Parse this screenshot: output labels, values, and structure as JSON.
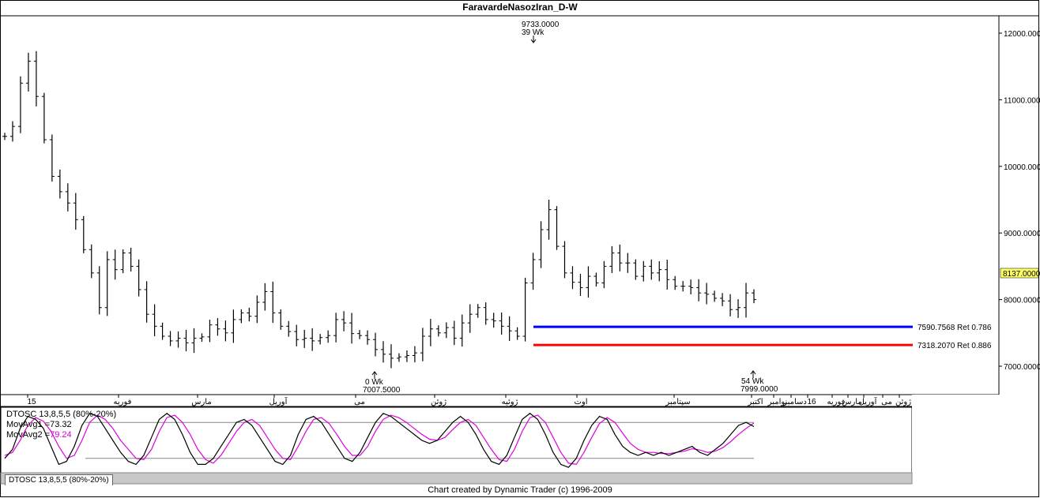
{
  "window": {
    "title": "FaravardeNasozIran_D-W",
    "footer": "Chart created by Dynamic Trader  (c) 1996-2009"
  },
  "oscillator": {
    "name": "DTOSC 13,8,5,5 (80%-20%)",
    "mov1_label": "MovAvg1 =",
    "mov1_value": "73.32",
    "mov2_label": "MovAvg2 =",
    "mov2_value": "79.24",
    "tab_label": "DTOSC 13,8,5,5 (80%-20%)",
    "colors": {
      "mov1": "#000000",
      "mov2": "#e000e0"
    }
  },
  "annotations": {
    "high": {
      "price": "9733.0000",
      "bars": "39 Wk"
    },
    "low": {
      "bars": "0 Wk",
      "price": "7007.5000"
    },
    "recent": {
      "bars": "54 Wk",
      "price": "7999.0000"
    },
    "current_price": "8137.0000",
    "ret1": {
      "price": "7590.7568",
      "ratio": "Ret 0.786",
      "color": "#0000ff"
    },
    "ret2": {
      "price": "7318.2070",
      "ratio": "Ret 0.886",
      "color": "#ff0000"
    }
  },
  "chart_data": {
    "type": "bar",
    "title": "FaravardeNasozIran_D-W",
    "y_axis": {
      "ticks": [
        "12000.0000",
        "11000.0000",
        "10000.0000",
        "9000.0000",
        "8000.0000",
        "7000.0000"
      ],
      "ylim": [
        6600,
        12200
      ],
      "position": "right"
    },
    "x_axis_labels": [
      "15",
      "فوریه",
      "مارس",
      "آوریل",
      "می",
      "ژوئن",
      "ژوئیه",
      "اوت",
      "سپتامبر",
      "اکتبر",
      "نوامبر",
      "دسامبر",
      "16",
      "فوریه",
      "مارس",
      "آوریل",
      "می",
      "ژوئن"
    ],
    "series": [],
    "close_values": [
      10450,
      10600,
      11250,
      11580,
      11050,
      10400,
      9850,
      9620,
      9450,
      9200,
      8750,
      8400,
      7880,
      8600,
      8450,
      8700,
      8500,
      8150,
      7780,
      7600,
      7450,
      7380,
      7420,
      7350,
      7420,
      7440,
      7620,
      7560,
      7500,
      7700,
      7800,
      7750,
      7960,
      8120,
      7800,
      7600,
      7520,
      7400,
      7420,
      7380,
      7430,
      7460,
      7700,
      7650,
      7490,
      7460,
      7400,
      7250,
      7180,
      7120,
      7140,
      7160,
      7200,
      7450,
      7560,
      7500,
      7580,
      7420,
      7650,
      7780,
      7880,
      7700,
      7680,
      7600,
      7530,
      7450,
      8250,
      8600,
      9050,
      9350,
      8800,
      8400,
      8260,
      8180,
      8350,
      8250,
      8500,
      8700,
      8550,
      8550,
      8350,
      8500,
      8400,
      8450,
      8300,
      8200,
      8200,
      8180,
      8100,
      8080,
      8020,
      7980,
      7850,
      7880,
      8100,
      8000
    ],
    "retracements": [
      {
        "price": 7590.7568,
        "label": "7590.7568 Ret 0.786",
        "color": "#0000ff"
      },
      {
        "price": 7318.207,
        "label": "7318.2070 Ret 0.886",
        "color": "#ff0000"
      }
    ],
    "oscillator": {
      "name": "DTOSC 13,8,5,5 (80%-20%)",
      "bands": [
        80,
        20
      ],
      "mov1": [
        20,
        35,
        70,
        90,
        85,
        70,
        40,
        10,
        15,
        40,
        75,
        95,
        90,
        70,
        50,
        30,
        15,
        10,
        25,
        55,
        85,
        95,
        85,
        60,
        30,
        10,
        10,
        20,
        40,
        60,
        80,
        85,
        75,
        55,
        35,
        15,
        10,
        25,
        60,
        85,
        90,
        80,
        60,
        40,
        20,
        15,
        30,
        55,
        80,
        95,
        90,
        80,
        70,
        60,
        50,
        45,
        50,
        65,
        80,
        90,
        80,
        60,
        35,
        15,
        10,
        25,
        55,
        85,
        95,
        85,
        60,
        30,
        10,
        5,
        20,
        50,
        75,
        90,
        85,
        60,
        40,
        30,
        25,
        30,
        25,
        30,
        25,
        30,
        35,
        40,
        30,
        25,
        35,
        45,
        60,
        75,
        80,
        73
      ],
      "mov2": [
        25,
        30,
        50,
        75,
        88,
        82,
        65,
        40,
        20,
        25,
        50,
        80,
        92,
        85,
        70,
        50,
        35,
        20,
        18,
        35,
        65,
        88,
        92,
        80,
        60,
        35,
        18,
        12,
        25,
        45,
        65,
        80,
        85,
        75,
        55,
        35,
        20,
        18,
        40,
        65,
        85,
        88,
        78,
        60,
        40,
        25,
        25,
        40,
        65,
        85,
        92,
        88,
        80,
        70,
        60,
        52,
        50,
        55,
        68,
        80,
        85,
        75,
        55,
        35,
        18,
        15,
        35,
        65,
        88,
        92,
        80,
        55,
        30,
        12,
        10,
        30,
        55,
        78,
        88,
        80,
        62,
        45,
        35,
        30,
        30,
        28,
        28,
        30,
        32,
        36,
        34,
        30,
        32,
        38,
        48,
        60,
        70,
        79
      ]
    }
  }
}
